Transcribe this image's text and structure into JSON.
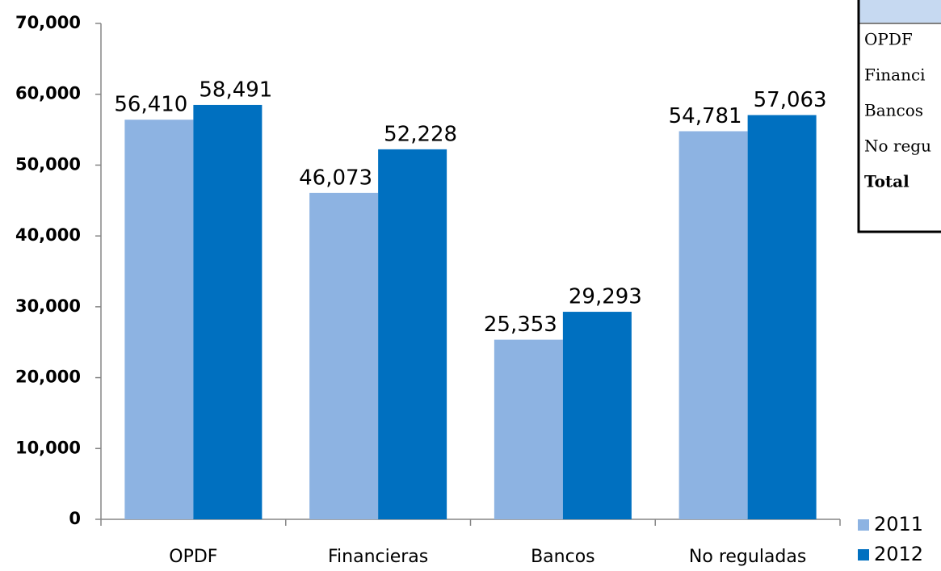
{
  "chart_data": {
    "type": "bar",
    "categories": [
      "OPDF",
      "Financieras",
      "Bancos",
      "No reguladas"
    ],
    "series": [
      {
        "name": "2011",
        "color": "#8db3e2",
        "values": [
          56410,
          46073,
          25353,
          54781
        ],
        "value_labels": [
          "56,410",
          "46,073",
          "25,353",
          "54,781"
        ]
      },
      {
        "name": "2012",
        "color": "#0070c0",
        "values": [
          58491,
          52228,
          29293,
          57063
        ],
        "value_labels": [
          "58,491",
          "52,228",
          "29,293",
          "57,063"
        ]
      }
    ],
    "ylim": [
      0,
      70000
    ],
    "yticks": [
      0,
      {
        "value": 10000,
        "label": "10,000"
      },
      {
        "value": 20000,
        "label": "20,000"
      },
      {
        "value": 30000,
        "label": "30,000"
      },
      {
        "value": 40000,
        "label": "40,000"
      },
      {
        "value": 50000,
        "label": "50,000"
      },
      {
        "value": 60000,
        "label": "60,000"
      },
      {
        "value": 70000,
        "label": "70,000"
      }
    ],
    "legend": "bottom-right"
  },
  "table": {
    "rows": [
      "OPDF",
      "Financi",
      "Bancos",
      "No regu",
      "Total"
    ]
  }
}
